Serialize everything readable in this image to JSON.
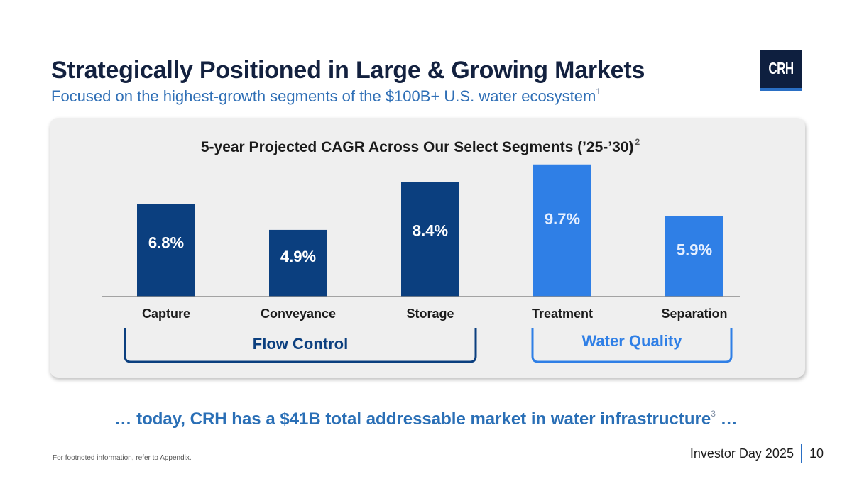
{
  "slide": {
    "title": "Strategically Positioned in Large & Growing Markets",
    "subtitle": "Focused on the highest-growth segments of the $100B+ U.S. water ecosystem",
    "subtitle_footnote": "1",
    "logo_text": "CRH",
    "tagline": "… today, CRH has a $41B total addressable market in water infrastructure",
    "tagline_footnote": "3",
    "tagline_suffix": " …",
    "footnote": "For footnoted information, refer to Appendix.",
    "footer_event": "Investor Day 2025",
    "page_number": "10"
  },
  "colors": {
    "flow_control": "#0b3f7f",
    "water_quality": "#2f7fe6",
    "axis": "#8a8a8a"
  },
  "chart_data": {
    "type": "bar",
    "title": "5-year Projected CAGR Across Our Select Segments (’25-’30)",
    "title_footnote": "2",
    "categories": [
      "Capture",
      "Conveyance",
      "Storage",
      "Treatment",
      "Separation"
    ],
    "values": [
      6.8,
      4.9,
      8.4,
      9.7,
      5.9
    ],
    "value_labels": [
      "6.8%",
      "4.9%",
      "8.4%",
      "9.7%",
      "5.9%"
    ],
    "unit": "%",
    "ylim": [
      0,
      10
    ],
    "groups": [
      {
        "name": "Flow Control",
        "categories": [
          "Capture",
          "Conveyance",
          "Storage"
        ],
        "color_key": "flow_control"
      },
      {
        "name": "Water Quality",
        "categories": [
          "Treatment",
          "Separation"
        ],
        "color_key": "water_quality"
      }
    ],
    "xlabel": "",
    "ylabel": "",
    "grid": false,
    "legend": "none"
  }
}
